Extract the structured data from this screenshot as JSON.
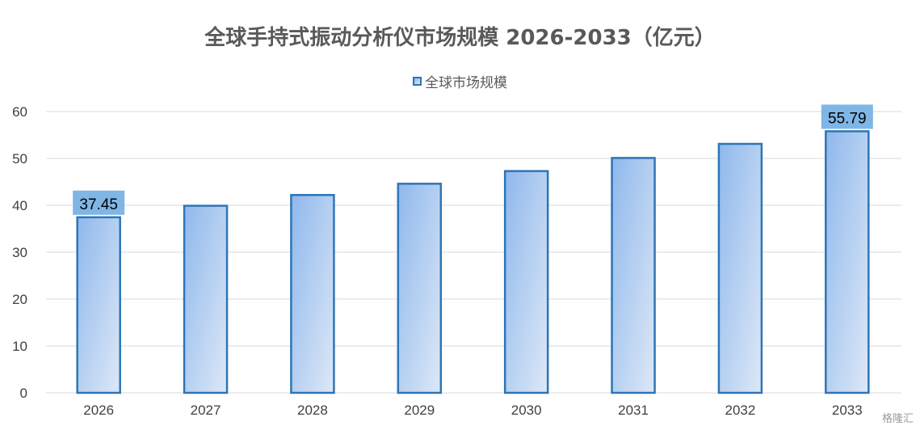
{
  "chart_data": {
    "type": "bar",
    "title": "全球手持式振动分析仪市场规模 2026-2033（亿元）",
    "categories": [
      "2026",
      "2027",
      "2028",
      "2029",
      "2030",
      "2031",
      "2032",
      "2033"
    ],
    "series": [
      {
        "name": "全球市场规模",
        "values": [
          37.45,
          39.9,
          42.2,
          44.6,
          47.3,
          50.1,
          53.1,
          55.79
        ]
      }
    ],
    "data_labels": [
      {
        "category": "2026",
        "text": "37.45"
      },
      {
        "category": "2033",
        "text": "55.79"
      }
    ],
    "xlabel": "",
    "ylabel": "",
    "ylim": [
      0,
      60
    ],
    "yticks": [
      0,
      10,
      20,
      30,
      40,
      50,
      60
    ],
    "grid": true,
    "legend_position": "top-center",
    "colors": {
      "bar_border": "#2e75b6",
      "bar_fill_start": "#8fb8ec",
      "bar_fill_end": "#dde8f7",
      "label_bg": "#7fb6e6",
      "gridline": "#d9d9d9"
    }
  },
  "watermark": "格隆汇"
}
